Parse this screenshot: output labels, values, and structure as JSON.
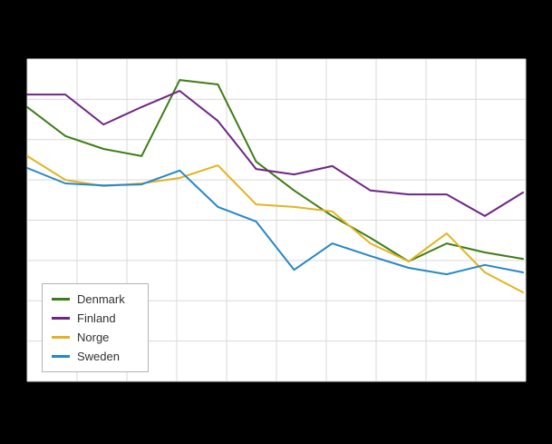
{
  "window": {
    "background_color": "#000000"
  },
  "chart": {
    "plot_background": "#ffffff",
    "gridline_color": "#d9d9d9"
  },
  "chart_data": {
    "type": "line",
    "title": "",
    "x": [
      1,
      2,
      3,
      4,
      5,
      6,
      7,
      8,
      9,
      10,
      11,
      12,
      13,
      14
    ],
    "ylim": [
      0,
      100
    ],
    "grid": true,
    "legend_position": "inside-bottom-left",
    "series": [
      {
        "name": "Denmark",
        "color": "#3e7d16",
        "values": [
          85.1,
          76.1,
          72.1,
          69.9,
          93.5,
          92.1,
          68.2,
          59.2,
          51.3,
          44.5,
          37.2,
          42.8,
          40.0,
          38.0
        ]
      },
      {
        "name": "Finland",
        "color": "#6e2585",
        "values": [
          89.0,
          89.0,
          79.7,
          85.1,
          90.1,
          80.8,
          65.9,
          64.2,
          66.8,
          59.2,
          58.0,
          58.0,
          51.3,
          58.6
        ]
      },
      {
        "name": "Norge",
        "color": "#e3b422",
        "values": [
          69.9,
          62.5,
          60.6,
          61.4,
          63.1,
          67.0,
          54.9,
          54.1,
          52.7,
          42.8,
          37.2,
          45.9,
          33.8,
          27.6
        ]
      },
      {
        "name": "Sweden",
        "color": "#2687c8",
        "values": [
          66.2,
          61.4,
          60.8,
          61.1,
          65.4,
          54.1,
          49.6,
          34.6,
          42.8,
          38.9,
          35.2,
          33.2,
          36.1,
          33.8
        ]
      }
    ]
  }
}
